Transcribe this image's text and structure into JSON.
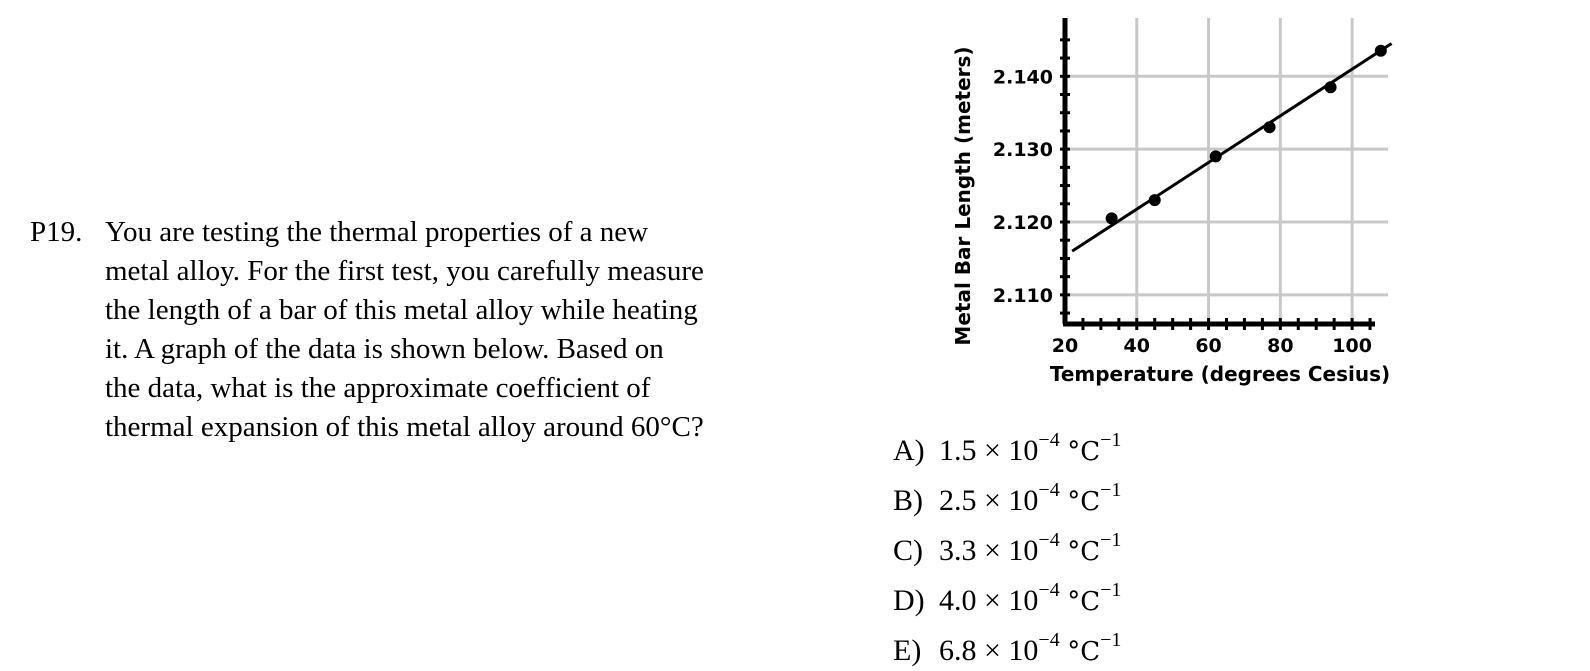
{
  "problem": {
    "number": "P19.",
    "lines": [
      "You are testing the thermal properties of a new",
      "metal alloy.  For the first test, you carefully measure",
      "the length of a bar of this metal alloy while heating",
      "it.  A graph of the data is shown below.  Based on",
      "the data, what is the approximate coefficient of",
      "thermal expansion of this metal alloy around 60°C?"
    ]
  },
  "choices": [
    {
      "letter": "A)",
      "mantissa": "1.5 × 10",
      "exponent": "−4",
      "unit": "°C",
      "unit_exponent": "−1"
    },
    {
      "letter": "B)",
      "mantissa": "2.5 × 10",
      "exponent": "−4",
      "unit": "°C",
      "unit_exponent": "−1"
    },
    {
      "letter": "C)",
      "mantissa": "3.3 × 10",
      "exponent": "−4",
      "unit": "°C",
      "unit_exponent": "−1"
    },
    {
      "letter": "D)",
      "mantissa": "4.0 × 10",
      "exponent": "−4",
      "unit": "°C",
      "unit_exponent": "−1"
    },
    {
      "letter": "E)",
      "mantissa": "6.8 × 10",
      "exponent": "−4",
      "unit": "°C",
      "unit_exponent": "−1"
    }
  ],
  "chart_data": {
    "type": "scatter",
    "title": "",
    "xlabel": "Temperature (degrees Cesius)",
    "ylabel": "Metal Bar Length (meters)",
    "x_ticks": [
      20,
      40,
      60,
      80,
      100
    ],
    "y_ticks": [
      2.11,
      2.12,
      2.13,
      2.14
    ],
    "y_tick_labels": [
      "2.110",
      "2.120",
      "2.130",
      "2.140"
    ],
    "xlim": [
      20,
      110
    ],
    "ylim": [
      2.106,
      2.148
    ],
    "grid": true,
    "points": [
      {
        "x": 33,
        "y": 2.1205
      },
      {
        "x": 45,
        "y": 2.123
      },
      {
        "x": 62,
        "y": 2.129
      },
      {
        "x": 77,
        "y": 2.133
      },
      {
        "x": 94,
        "y": 2.1385
      },
      {
        "x": 108,
        "y": 2.1435
      }
    ],
    "fit_line": {
      "x": [
        22,
        111
      ],
      "y": [
        2.116,
        2.1445
      ]
    },
    "colors": {
      "grid": "#c8c8c8",
      "axis": "#000000",
      "points": "#000000"
    }
  }
}
